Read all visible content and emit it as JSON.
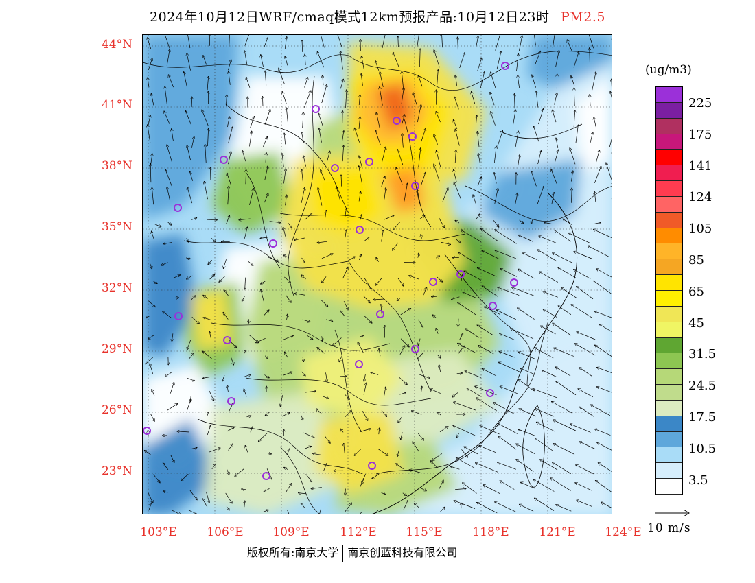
{
  "header": {
    "title": "2024年10月12日WRF/cmaq模式12km预报产品:10月12日23时",
    "pollutant": "PM2.5"
  },
  "map": {
    "lat_labels": [
      "44°N",
      "41°N",
      "38°N",
      "35°N",
      "32°N",
      "29°N",
      "26°N",
      "23°N"
    ],
    "lon_labels": [
      "103°E",
      "106°E",
      "109°E",
      "112°E",
      "115°E",
      "118°E",
      "121°E",
      "124°E"
    ],
    "colors": {
      "white": "#ffffff",
      "pale_blue": "#d6eefc",
      "light_blue": "#a9dcf7",
      "mid_blue": "#5ea7db",
      "dark_blue": "#3b87c7",
      "pale_green": "#dcebc0",
      "light_green": "#b6d878",
      "green": "#8dc652",
      "dark_green": "#5fa632",
      "pale_yellow": "#f0f07a",
      "yellow": "#f4e24a",
      "gold": "#ffe400",
      "orange_light": "#ffb835",
      "orange": "#ff9a24",
      "red_orange": "#f0641e"
    },
    "station_color": "#9b30d9"
  },
  "legend": {
    "unit": "(ug/m3)",
    "labels": [
      "225",
      "175",
      "141",
      "124",
      "105",
      "85",
      "65",
      "45",
      "31.5",
      "24.5",
      "17.5",
      "10.5",
      "3.5"
    ],
    "colors": [
      "#9b30d9",
      "#7b1fa2",
      "#b03060",
      "#c8177a",
      "#ff0000",
      "#f01e50",
      "#ff3c50",
      "#ff6464",
      "#f05a28",
      "#ff8c00",
      "#ffb428",
      "#f5a623",
      "#ffe400",
      "#fff000",
      "#f0e656",
      "#f0f564",
      "#5fa632",
      "#8dc652",
      "#b6d878",
      "#c0dc8c",
      "#dcebc0",
      "#3b87c7",
      "#5ea7db",
      "#a9dcf7",
      "#d6eefc",
      "#ffffff"
    ]
  },
  "wind": {
    "reference_label": "10 m/s"
  },
  "footer": {
    "left": "版权所有:南京大学",
    "right": "南京创蓝科技有限公司"
  }
}
